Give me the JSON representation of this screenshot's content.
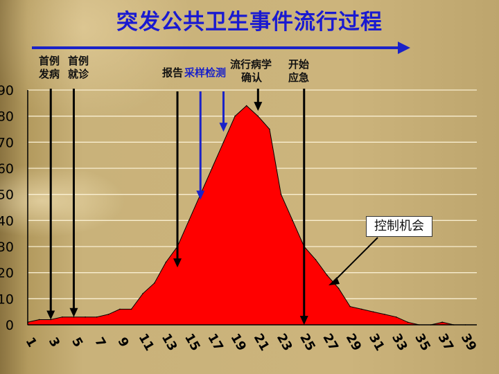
{
  "title": "突发公共卫生事件流行过程",
  "annotations": {
    "first_onset_line1": "首例",
    "first_onset_line2": "发病",
    "first_visit_line1": "首例",
    "first_visit_line2": "就诊",
    "report": "报告",
    "sampling": "采样检测",
    "epi_line1": "流行病学",
    "epi_line2": "确认",
    "response_line1": "开始",
    "response_line2": "应急",
    "control_opportunity": "控制机会"
  },
  "colors": {
    "title": "#1a1ad0",
    "area_fill": "#ff0000",
    "timeline_arrow": "#1a22c8",
    "black_arrow": "#000000",
    "blue_arrow": "#1a22c8"
  },
  "chart_data": {
    "type": "area",
    "title": "突发公共卫生事件流行过程",
    "xlabel": "",
    "ylabel": "",
    "x": [
      1,
      2,
      3,
      4,
      5,
      6,
      7,
      8,
      9,
      10,
      11,
      12,
      13,
      14,
      15,
      16,
      17,
      18,
      19,
      20,
      21,
      22,
      23,
      24,
      25,
      26,
      27,
      28,
      29,
      30,
      31,
      32,
      33,
      34,
      35,
      36,
      37,
      38,
      39
    ],
    "values": [
      1,
      2,
      2,
      3,
      3,
      3,
      3,
      4,
      6,
      6,
      12,
      16,
      24,
      30,
      40,
      50,
      60,
      70,
      80,
      84,
      80,
      75,
      50,
      40,
      30,
      25,
      19,
      14,
      7,
      6,
      5,
      4,
      3,
      1,
      0,
      0,
      1,
      0,
      0
    ],
    "xlim": [
      1,
      40
    ],
    "ylim": [
      0,
      90
    ],
    "yticks": [
      0,
      10,
      20,
      30,
      40,
      50,
      60,
      70,
      80,
      90
    ],
    "xticks": [
      1,
      3,
      5,
      7,
      9,
      11,
      13,
      15,
      17,
      19,
      21,
      23,
      25,
      27,
      29,
      31,
      33,
      35,
      37,
      39
    ],
    "grid": true,
    "events": [
      {
        "label": "首例发病",
        "x": 3
      },
      {
        "label": "首例就诊",
        "x": 5
      },
      {
        "label": "报告",
        "x": 14
      },
      {
        "label": "采样检测",
        "x": 16
      },
      {
        "label": "采样检测",
        "x": 18
      },
      {
        "label": "流行病学确认",
        "x": 21
      },
      {
        "label": "开始应急",
        "x": 25
      }
    ]
  }
}
